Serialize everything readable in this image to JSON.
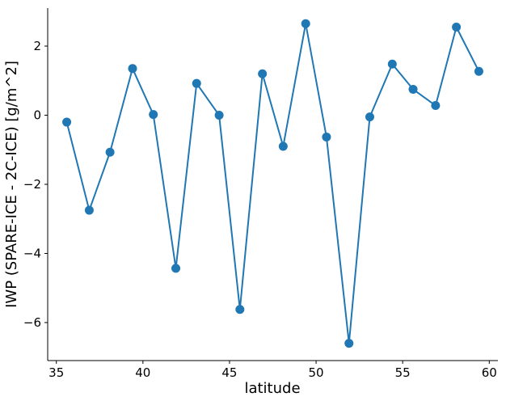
{
  "chart_data": {
    "type": "line",
    "title": "",
    "xlabel": "latitude",
    "ylabel": "IWP (SPARE-ICE - 2C-ICE) [g/m^2]",
    "xlim": [
      34.5,
      60.5
    ],
    "ylim": [
      -7.1,
      3.1
    ],
    "xticks": [
      35,
      40,
      45,
      50,
      55,
      60
    ],
    "yticks": [
      -6,
      -4,
      -2,
      0,
      2
    ],
    "xtick_labels": [
      "35",
      "40",
      "45",
      "50",
      "55",
      "60"
    ],
    "ytick_labels": [
      "−6",
      "−4",
      "−2",
      "0",
      "2"
    ],
    "grid": false,
    "legend": "none",
    "color": "#1f77b4",
    "series": [
      {
        "x": [
          35.6,
          36.9,
          38.1,
          39.4,
          40.6,
          41.9,
          43.1,
          44.4,
          45.6,
          46.9,
          48.1,
          49.4,
          50.6,
          51.9,
          53.1,
          54.4,
          55.6,
          56.9,
          58.1,
          59.4
        ],
        "y": [
          -0.2,
          -2.75,
          -1.07,
          1.35,
          0.02,
          -4.43,
          0.92,
          0.0,
          -5.62,
          1.2,
          -0.9,
          2.65,
          -0.63,
          -6.6,
          -0.05,
          1.48,
          0.75,
          0.28,
          2.55,
          1.27
        ]
      }
    ]
  }
}
